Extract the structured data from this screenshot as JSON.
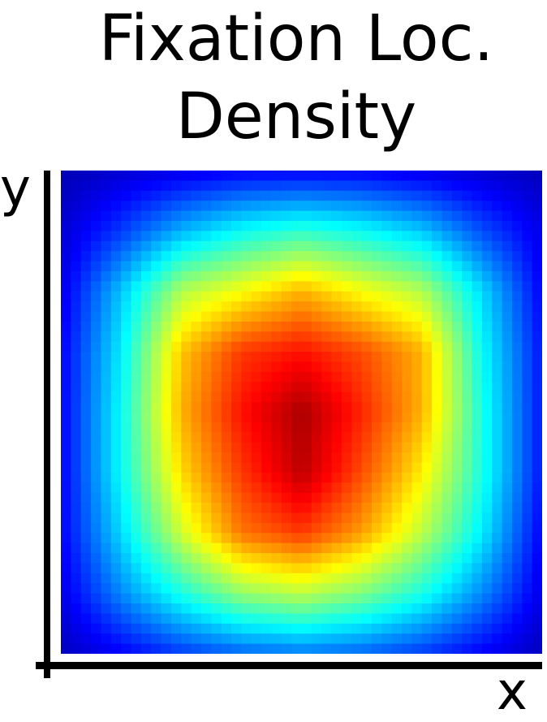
{
  "chart_data": {
    "type": "heatmap",
    "title": "Fixation Loc. Density",
    "title_lines": [
      "Fixation Loc.",
      "Density"
    ],
    "xlabel": "x",
    "ylabel": "y",
    "colormap": "jet",
    "colors": {
      "low": "#00008f",
      "cyan": "#00ffff",
      "yellow": "#ffff00",
      "red": "#ff0000",
      "high": "#800000"
    },
    "description_of_distribution": "",
    "density_grid": [
      [
        0.05,
        0.08,
        0.1,
        0.12,
        0.12,
        0.12,
        0.1,
        0.08,
        0.06
      ],
      [
        0.08,
        0.18,
        0.3,
        0.38,
        0.42,
        0.38,
        0.32,
        0.2,
        0.1
      ],
      [
        0.1,
        0.32,
        0.55,
        0.62,
        0.7,
        0.62,
        0.55,
        0.34,
        0.12
      ],
      [
        0.12,
        0.36,
        0.68,
        0.82,
        0.86,
        0.8,
        0.7,
        0.38,
        0.14
      ],
      [
        0.12,
        0.38,
        0.7,
        0.86,
        0.96,
        0.84,
        0.7,
        0.4,
        0.14
      ],
      [
        0.12,
        0.38,
        0.66,
        0.82,
        0.94,
        0.8,
        0.64,
        0.4,
        0.14
      ],
      [
        0.12,
        0.34,
        0.58,
        0.76,
        0.82,
        0.72,
        0.56,
        0.36,
        0.12
      ],
      [
        0.1,
        0.26,
        0.4,
        0.52,
        0.56,
        0.5,
        0.4,
        0.26,
        0.1
      ],
      [
        0.06,
        0.12,
        0.18,
        0.22,
        0.24,
        0.22,
        0.18,
        0.12,
        0.06
      ]
    ]
  }
}
